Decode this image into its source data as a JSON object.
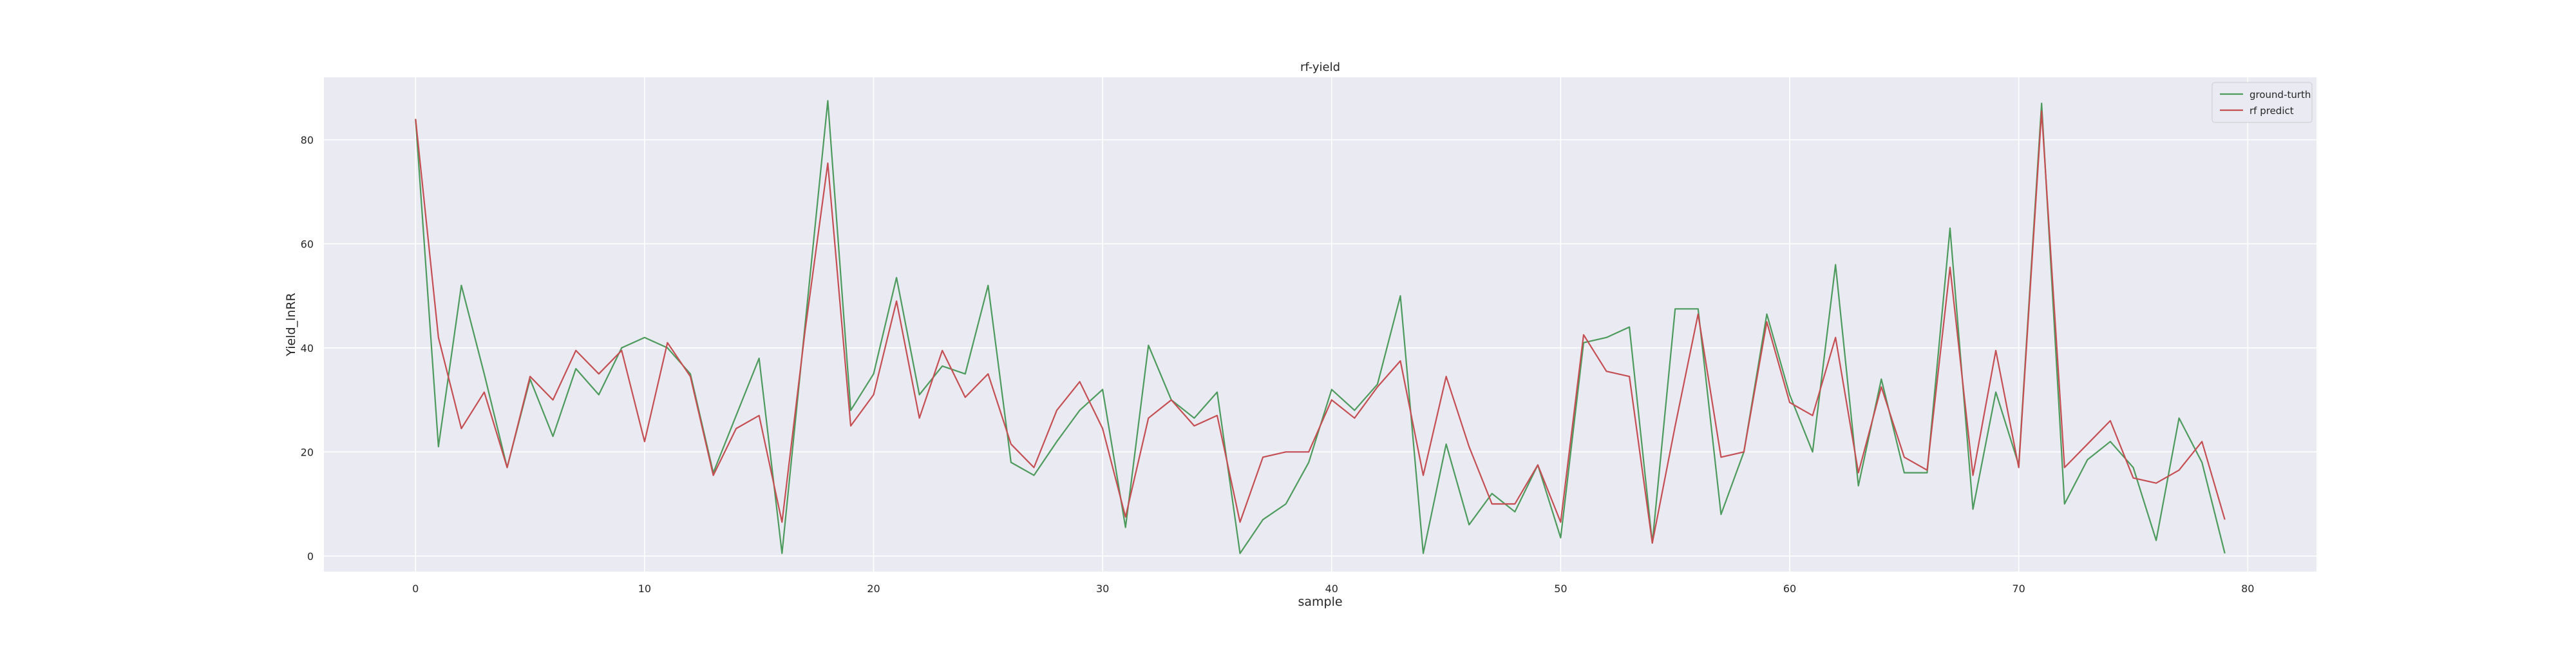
{
  "chart_data": {
    "type": "line",
    "title": "rf-yield",
    "xlabel": "sample",
    "ylabel": "Yield_lnRR",
    "xlim": [
      -4,
      83
    ],
    "ylim": [
      -3,
      92
    ],
    "xticks": [
      0,
      10,
      20,
      30,
      40,
      50,
      60,
      70,
      80
    ],
    "yticks": [
      0,
      20,
      40,
      60,
      80
    ],
    "grid": true,
    "background": "#eaeaf2",
    "legend_position": "top-right",
    "x": [
      0,
      1,
      2,
      3,
      4,
      5,
      6,
      7,
      8,
      9,
      10,
      11,
      12,
      13,
      14,
      15,
      16,
      17,
      18,
      19,
      20,
      21,
      22,
      23,
      24,
      25,
      26,
      27,
      28,
      29,
      30,
      31,
      32,
      33,
      34,
      35,
      36,
      37,
      38,
      39,
      40,
      41,
      42,
      43,
      44,
      45,
      46,
      47,
      48,
      49,
      50,
      51,
      52,
      53,
      54,
      55,
      56,
      57,
      58,
      59,
      60,
      61,
      62,
      63,
      64,
      65,
      66,
      67,
      68,
      69,
      70,
      71,
      72,
      73,
      74,
      75,
      76,
      77,
      78,
      79
    ],
    "series": [
      {
        "name": "ground-turth",
        "color": "#4c9a5c",
        "values": [
          84,
          21,
          52,
          35,
          17,
          34,
          23,
          36,
          31,
          40,
          42,
          40,
          35,
          16,
          27,
          38,
          0.5,
          44,
          87.5,
          28,
          35,
          53.5,
          31,
          36.5,
          35,
          52,
          18,
          15.5,
          22,
          28,
          32,
          5.5,
          40.5,
          30,
          26.5,
          31.5,
          0.5,
          7,
          10,
          18,
          32,
          28,
          33,
          50,
          0.5,
          21.5,
          6,
          12,
          8.5,
          17.5,
          3.5,
          41,
          42,
          44,
          2.5,
          47.5,
          47.5,
          8,
          20,
          46.5,
          31,
          20,
          56,
          13.5,
          34,
          16,
          16,
          63,
          9,
          31.5,
          17.5,
          87,
          10,
          18.5,
          22,
          17,
          3,
          26.5,
          18,
          0.5
        ]
      },
      {
        "name": "rf predict",
        "color": "#c44e52",
        "values": [
          84,
          42,
          24.5,
          31.5,
          17,
          34.5,
          30,
          39.5,
          35,
          39.5,
          22,
          41,
          34.5,
          15.5,
          24.5,
          27,
          6.5,
          43,
          75.5,
          25,
          31,
          49,
          26.5,
          39.5,
          30.5,
          35,
          21.5,
          17,
          28,
          33.5,
          24.5,
          7.5,
          26.5,
          30,
          25,
          27,
          6.5,
          19,
          20,
          20,
          30,
          26.5,
          32.5,
          37.5,
          15.5,
          34.5,
          21,
          10,
          10,
          17.5,
          6.5,
          42.5,
          35.5,
          34.5,
          2.5,
          25,
          46.5,
          19,
          20,
          45,
          29.5,
          27,
          42,
          16,
          32.5,
          19,
          16.5,
          55.5,
          15.5,
          39.5,
          17,
          85.5,
          17,
          21.5,
          26,
          15,
          14,
          16.5,
          22,
          7
        ]
      }
    ]
  }
}
